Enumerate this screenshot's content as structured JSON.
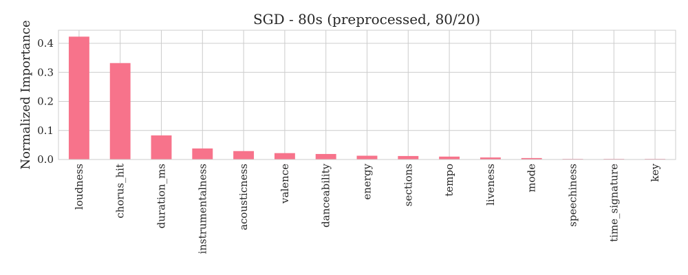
{
  "chart_data": {
    "type": "bar",
    "title": "SGD - 80s (preprocessed, 80/20)",
    "xlabel": "",
    "ylabel": "Normalized Importance",
    "categories": [
      "loudness",
      "chorus_hit",
      "duration_ms",
      "instrumentalness",
      "acousticness",
      "valence",
      "danceability",
      "energy",
      "sections",
      "tempo",
      "liveness",
      "mode",
      "speechiness",
      "time_signature",
      "key"
    ],
    "values": [
      0.423,
      0.332,
      0.083,
      0.038,
      0.029,
      0.022,
      0.019,
      0.013,
      0.012,
      0.01,
      0.007,
      0.005,
      0.002,
      0.002,
      0.002
    ],
    "ylim": [
      0,
      0.445
    ],
    "yticks": [
      0.0,
      0.1,
      0.2,
      0.3,
      0.4
    ],
    "ytick_labels": [
      "0.0",
      "0.1",
      "0.2",
      "0.3",
      "0.4"
    ],
    "grid": true,
    "legend": "none",
    "colors": {
      "bar": "#f7738b",
      "grid": "#cccccc",
      "frame": "#cccccc",
      "text": "#262626"
    }
  }
}
